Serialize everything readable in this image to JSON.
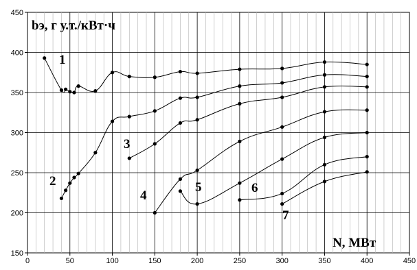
{
  "chart_data": {
    "type": "line",
    "ylabel": "bэ, г у.т./кВт·ч",
    "xlabel": "N, МВт",
    "xlim": [
      0,
      450
    ],
    "ylim": [
      150,
      450
    ],
    "x_ticks": [
      "0",
      "50",
      "100",
      "150",
      "200",
      "250",
      "300",
      "350",
      "400",
      "450"
    ],
    "y_ticks": [
      "150",
      "200",
      "250",
      "300",
      "350",
      "400",
      "450"
    ],
    "grid": {
      "major": true,
      "minor_vertical": true
    },
    "series": [
      {
        "name": "1",
        "points": [
          [
            20,
            393
          ],
          [
            40,
            353
          ],
          [
            45,
            354
          ],
          [
            50,
            351
          ],
          [
            55,
            350
          ],
          [
            60,
            358
          ],
          [
            80,
            352
          ],
          [
            100,
            375
          ],
          [
            120,
            370
          ],
          [
            150,
            369
          ],
          [
            180,
            376
          ],
          [
            200,
            374
          ],
          [
            250,
            379
          ],
          [
            300,
            380
          ],
          [
            350,
            388
          ],
          [
            400,
            385
          ]
        ]
      },
      {
        "name": "2",
        "points": [
          [
            40,
            218
          ],
          [
            45,
            228
          ],
          [
            50,
            237
          ],
          [
            55,
            244
          ],
          [
            60,
            249
          ],
          [
            80,
            275
          ],
          [
            100,
            314
          ],
          [
            120,
            320
          ],
          [
            150,
            327
          ],
          [
            180,
            343
          ],
          [
            200,
            344
          ],
          [
            250,
            358
          ],
          [
            300,
            362
          ],
          [
            350,
            372
          ],
          [
            400,
            370
          ]
        ]
      },
      {
        "name": "3",
        "points": [
          [
            120,
            268
          ],
          [
            150,
            286
          ],
          [
            180,
            312
          ],
          [
            200,
            316
          ],
          [
            250,
            336
          ],
          [
            300,
            344
          ],
          [
            350,
            357
          ],
          [
            400,
            357
          ]
        ]
      },
      {
        "name": "4",
        "points": [
          [
            150,
            200
          ],
          [
            180,
            242
          ],
          [
            200,
            253
          ],
          [
            250,
            289
          ],
          [
            300,
            307
          ],
          [
            350,
            326
          ],
          [
            400,
            328
          ]
        ]
      },
      {
        "name": "5",
        "points": [
          [
            180,
            227
          ],
          [
            200,
            211
          ],
          [
            250,
            237
          ],
          [
            300,
            267
          ],
          [
            350,
            294
          ],
          [
            400,
            300
          ]
        ]
      },
      {
        "name": "6",
        "points": [
          [
            250,
            216
          ],
          [
            300,
            224
          ],
          [
            350,
            260
          ],
          [
            400,
            270
          ]
        ]
      },
      {
        "name": "7",
        "points": [
          [
            300,
            211
          ],
          [
            350,
            239
          ],
          [
            400,
            251
          ]
        ]
      }
    ]
  }
}
